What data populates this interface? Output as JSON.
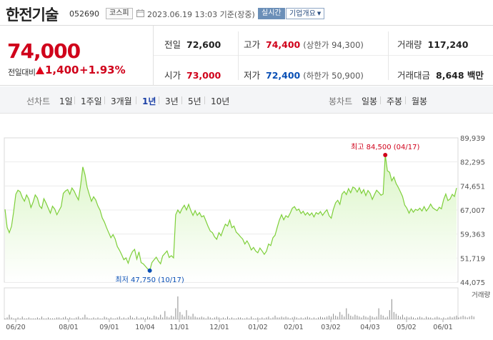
{
  "header": {
    "name": "한전기술",
    "code": "052690",
    "market": "코스피",
    "datetime": "2023.06.19 13:03 기준(장중)",
    "realtime": "실시간",
    "company_info": "기업개요"
  },
  "summary": {
    "price": "74,000",
    "change_label": "전일대비",
    "change": "1,400",
    "rate": "+1.93%",
    "prev_close_label": "전일",
    "prev_close": "72,600",
    "high_label": "고가",
    "high": "74,400",
    "upper_limit": "(상한가 94,300)",
    "volume_label": "거래량",
    "volume": "117,240",
    "open_label": "시가",
    "open": "73,000",
    "low_label": "저가",
    "low": "72,400",
    "lower_limit": "(하한가 50,900)",
    "amount_label": "거래대금",
    "amount": "8,648 백만"
  },
  "tabs": {
    "line_title": "선차트",
    "line": [
      "1일",
      "1주일",
      "3개월",
      "1년",
      "3년",
      "5년",
      "10년"
    ],
    "active": "1년",
    "candle_title": "봉차트",
    "candle": [
      "일봉",
      "주봉",
      "월봉"
    ]
  },
  "colors": {
    "up": "#d0021b",
    "down": "#0a50b5",
    "line": "#7ecf3a",
    "fill_top": "#d9f5c4"
  },
  "chart_data": {
    "type": "area",
    "ylim": [
      44075,
      89939
    ],
    "yticks": [
      "89,939",
      "82,295",
      "74,651",
      "67,007",
      "59,363",
      "51,719",
      "44,075"
    ],
    "xticks": [
      "06/20",
      "08/01",
      "09/01",
      "10/04",
      "11/01",
      "12/01",
      "01/02",
      "02/01",
      "03/02",
      "04/03",
      "05/02",
      "06/01"
    ],
    "volume_label": "거래량",
    "high": {
      "label": "최고 84,500 (04/17)",
      "value": 84500
    },
    "low": {
      "label": "최저 47,750 (10/17)",
      "value": 47750
    },
    "series": [
      {
        "values": [
          67200,
          61500,
          59800,
          61800,
          66500,
          72000,
          73300,
          72800,
          71000,
          69800,
          71800,
          70500,
          67800,
          69500,
          71800,
          70800,
          68300,
          67500,
          70600,
          69200,
          67600,
          66000,
          68200,
          67300,
          65500,
          66800,
          68100,
          72300,
          73100,
          73500,
          72000,
          74000,
          73000,
          71500,
          70200,
          74800,
          80700,
          78300,
          74300,
          72000,
          69800,
          71200,
          70200,
          68300,
          66900,
          64500,
          63200,
          61400,
          59800,
          58200,
          59200,
          57800,
          55400,
          54200,
          52800,
          51200,
          51800,
          50100,
          52300,
          53800,
          54500,
          51400,
          53700,
          50300,
          49900,
          49100,
          48300,
          47750,
          50300,
          51200,
          52000,
          50800,
          49900,
          52400,
          53200,
          54000,
          51900,
          52500,
          51800,
          65500,
          67000,
          66000,
          67500,
          68500,
          67000,
          68800,
          66800,
          65300,
          66800,
          65300,
          66200,
          64800,
          65200,
          63500,
          61800,
          60300,
          59800,
          58500,
          57700,
          59800,
          58800,
          60800,
          62500,
          61900,
          63800,
          61400,
          61900,
          60000,
          59300,
          58500,
          57800,
          56200,
          57200,
          56000,
          54300,
          55100,
          54000,
          53400,
          54900,
          54000,
          52900,
          53900,
          56200,
          55700,
          58200,
          59000,
          61500,
          63800,
          65500,
          63900,
          65200,
          64700,
          66000,
          67600,
          68100,
          66900,
          67300,
          65900,
          66600,
          65400,
          66200,
          65300,
          66100,
          64800,
          66200,
          65700,
          66500,
          65300,
          66300,
          67100,
          65200,
          64400,
          67200,
          69300,
          70100,
          68800,
          72100,
          72900,
          71900,
          73800,
          72500,
          74300,
          73900,
          72700,
          74100,
          72300,
          73500,
          71600,
          73200,
          72300,
          70400,
          71900,
          73300,
          72600,
          71700,
          72100,
          84500,
          79500,
          79000,
          76300,
          77500,
          75500,
          74200,
          72800,
          71300,
          68600,
          67600,
          66000,
          67400,
          66300,
          67200,
          66900,
          67600,
          66700,
          68100,
          66700,
          67600,
          68900,
          67700,
          67200,
          66800,
          67900,
          67400,
          70300,
          72100,
          70000,
          70500,
          72000,
          71300,
          74000
        ]
      }
    ],
    "volume": [
      1,
      2,
      5,
      2,
      1,
      1,
      2,
      1,
      3,
      1,
      1,
      2,
      1,
      1,
      1,
      2,
      1,
      3,
      1,
      1,
      2,
      1,
      1,
      1,
      2,
      2,
      1,
      2,
      3,
      1,
      2,
      1,
      1,
      2,
      3,
      1,
      2,
      5,
      2,
      1,
      1,
      2,
      1,
      2,
      1,
      1,
      3,
      2,
      1,
      2,
      1,
      1,
      2,
      3,
      1,
      2,
      1,
      2,
      4,
      2,
      1,
      3,
      1,
      2,
      2,
      1,
      3,
      2,
      1,
      4,
      3,
      2,
      5,
      2,
      9,
      3,
      2,
      4,
      3,
      12,
      25,
      8,
      5,
      3,
      10,
      4,
      3,
      6,
      3,
      2,
      2,
      3,
      2,
      1,
      3,
      2,
      1,
      2,
      3,
      2,
      1,
      2,
      1,
      3,
      1,
      2,
      1,
      1,
      2,
      2,
      1,
      1,
      2,
      1,
      3,
      1,
      1,
      2,
      1,
      2,
      1,
      2,
      3,
      1,
      2,
      4,
      2,
      2,
      3,
      2,
      3,
      2,
      1,
      2,
      3,
      2,
      1,
      2,
      1,
      2,
      3,
      2,
      1,
      2,
      1,
      2,
      3,
      2,
      2,
      3,
      4,
      3,
      6,
      4,
      3,
      8,
      5,
      3,
      12,
      6,
      4,
      3,
      5,
      4,
      3,
      2,
      4,
      3,
      2,
      4,
      3,
      2,
      3,
      12,
      5,
      4,
      2,
      3,
      10,
      22,
      8,
      6,
      4,
      3,
      5,
      2,
      3,
      2,
      3,
      2,
      1,
      2,
      3,
      2,
      1,
      3,
      2,
      2,
      1,
      2,
      3,
      2,
      1,
      2,
      1,
      2,
      3,
      2,
      3,
      4,
      2,
      3,
      4,
      3,
      2,
      3,
      4,
      3
    ]
  }
}
